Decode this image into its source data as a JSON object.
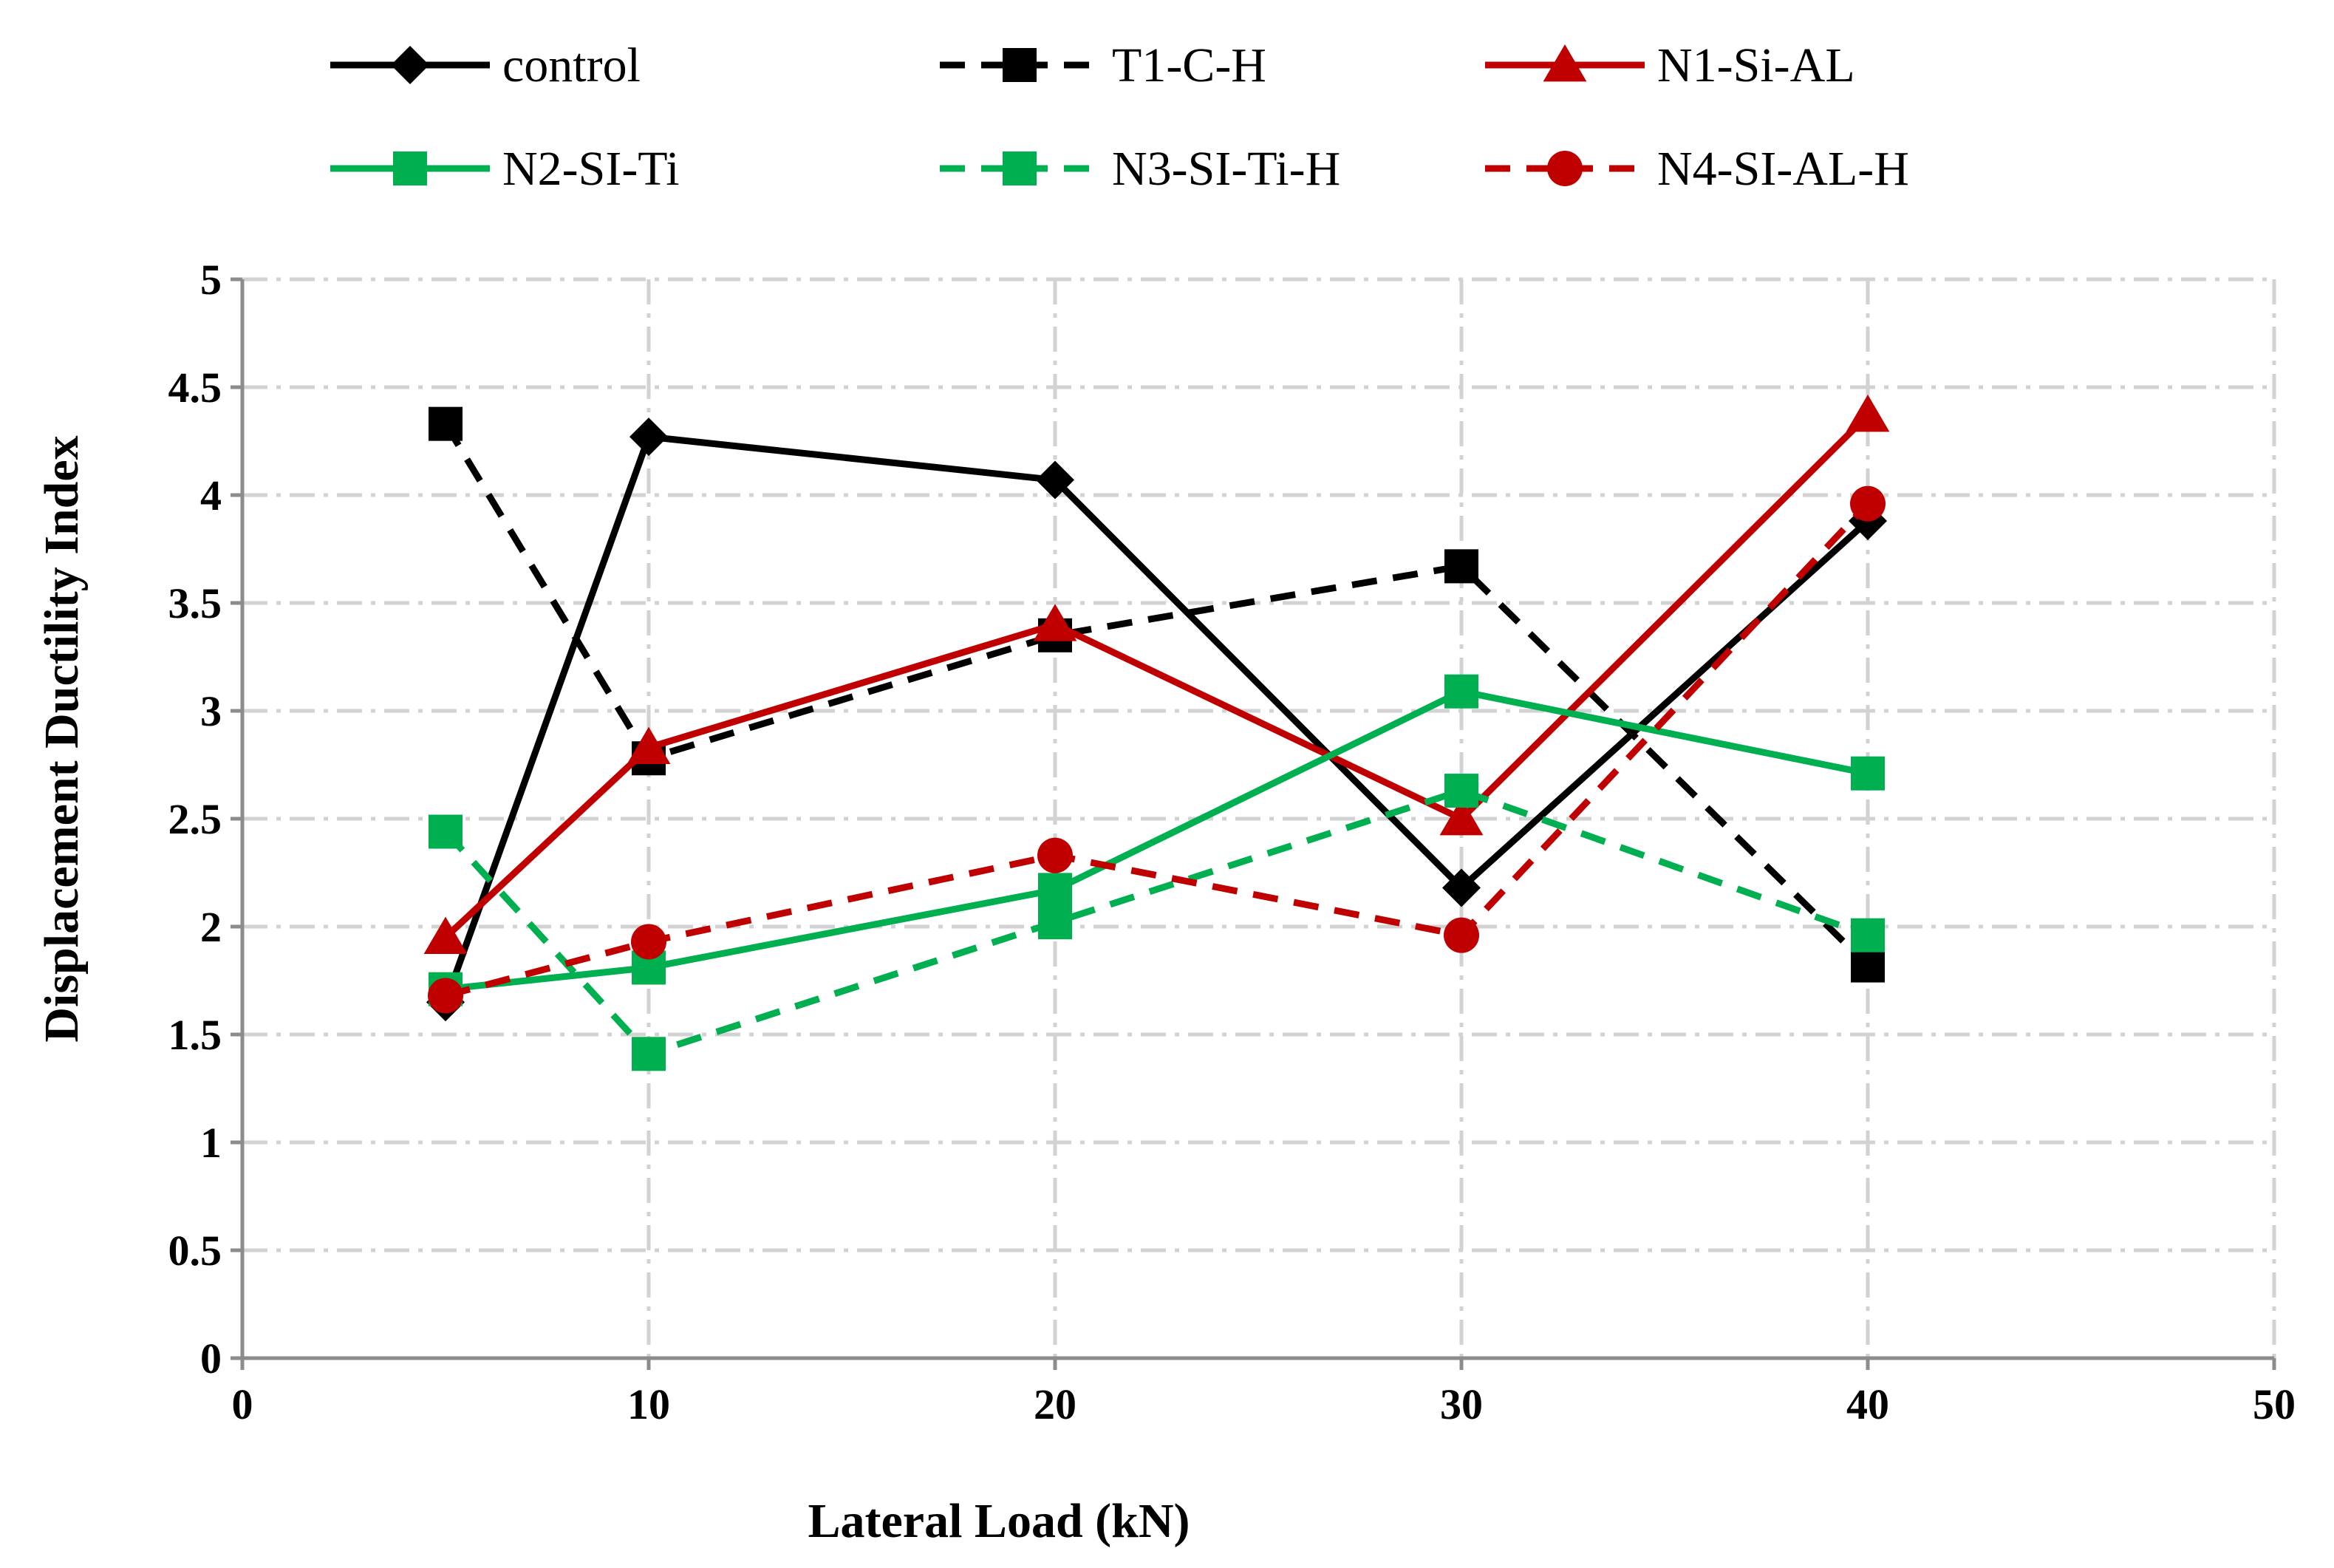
{
  "chart_data": {
    "type": "line",
    "title": "",
    "xlabel": "Lateral Load (kN)",
    "ylabel": "Displacement Ductility Index",
    "xlim": [
      0,
      50
    ],
    "ylim": [
      0,
      5
    ],
    "xticks": [
      0,
      10,
      20,
      30,
      40,
      50
    ],
    "yticks": [
      0,
      0.5,
      1,
      1.5,
      2,
      2.5,
      3,
      3.5,
      4,
      4.5,
      5
    ],
    "x_tick_labels": [
      "0",
      "10",
      "20",
      "30",
      "40",
      "50"
    ],
    "y_tick_labels": [
      "0",
      "0.5",
      "1",
      "1.5",
      "2",
      "2.5",
      "3",
      "3.5",
      "4",
      "4.5",
      "5"
    ],
    "grid": true,
    "legend_position": "top",
    "x": [
      5,
      10,
      20,
      30,
      40
    ],
    "series": [
      {
        "name": "control",
        "values": [
          1.65,
          4.27,
          4.07,
          2.18,
          3.88
        ],
        "color": "#000000",
        "dash": "solid",
        "marker": "diamond"
      },
      {
        "name": "T1-C-H",
        "values": [
          4.33,
          2.78,
          3.35,
          3.67,
          1.82
        ],
        "color": "#000000",
        "dash": "dashed",
        "marker": "square"
      },
      {
        "name": "N1-Si-AL",
        "values": [
          1.95,
          2.83,
          3.4,
          2.5,
          4.37
        ],
        "color": "#c00000",
        "dash": "solid",
        "marker": "triangle"
      },
      {
        "name": "N2-SI-Ti",
        "values": [
          1.71,
          1.81,
          2.17,
          3.09,
          2.71
        ],
        "color": "#00b050",
        "dash": "solid",
        "marker": "square"
      },
      {
        "name": "N3-SI-Ti-H",
        "values": [
          2.44,
          1.41,
          2.02,
          2.63,
          1.96
        ],
        "color": "#00b050",
        "dash": "dashed",
        "marker": "square"
      },
      {
        "name": "N4-SI-AL-H",
        "values": [
          1.68,
          1.93,
          2.33,
          1.96,
          3.96
        ],
        "color": "#c00000",
        "dash": "dashed",
        "marker": "circle"
      }
    ]
  }
}
